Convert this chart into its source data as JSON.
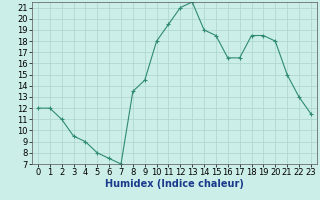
{
  "x": [
    0,
    1,
    2,
    3,
    4,
    5,
    6,
    7,
    8,
    9,
    10,
    11,
    12,
    13,
    14,
    15,
    16,
    17,
    18,
    19,
    20,
    21,
    22,
    23
  ],
  "y": [
    12,
    12,
    11,
    9.5,
    9,
    8,
    7.5,
    7,
    13.5,
    14.5,
    18,
    19.5,
    21,
    21.5,
    19,
    18.5,
    16.5,
    16.5,
    18.5,
    18.5,
    18,
    15,
    13,
    11.5
  ],
  "line_color": "#2e8b72",
  "marker_color": "#2e8b72",
  "bg_color": "#cceee8",
  "grid_color": "#aad4ce",
  "xlabel": "Humidex (Indice chaleur)",
  "xlim": [
    -0.5,
    23.5
  ],
  "ylim": [
    7,
    21.5
  ],
  "yticks": [
    7,
    8,
    9,
    10,
    11,
    12,
    13,
    14,
    15,
    16,
    17,
    18,
    19,
    20,
    21
  ],
  "xticks": [
    0,
    1,
    2,
    3,
    4,
    5,
    6,
    7,
    8,
    9,
    10,
    11,
    12,
    13,
    14,
    15,
    16,
    17,
    18,
    19,
    20,
    21,
    22,
    23
  ],
  "tick_fontsize": 6,
  "xlabel_fontsize": 7
}
